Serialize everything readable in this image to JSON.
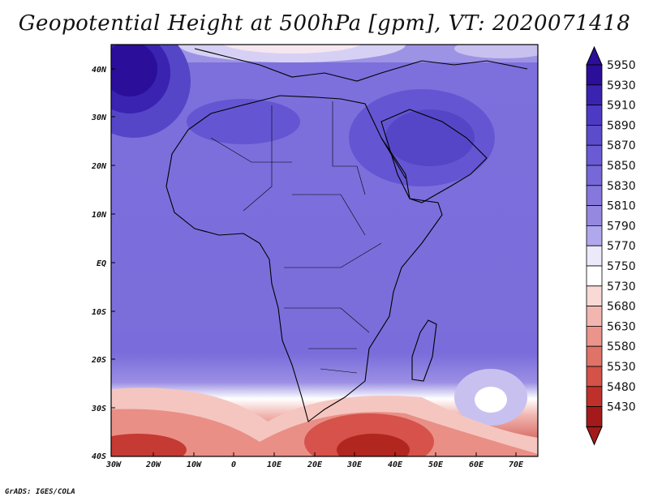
{
  "title": "Geopotential Height at 500hPa [gpm], VT: 2020071418",
  "credit": "GrADS: IGES/COLA",
  "lat_labels": [
    "40N",
    "30N",
    "20N",
    "10N",
    "EQ",
    "10S",
    "20S",
    "30S",
    "40S"
  ],
  "lon_labels": [
    "30W",
    "20W",
    "10W",
    "0",
    "10E",
    "20E",
    "30E",
    "40E",
    "50E",
    "60E",
    "70E"
  ],
  "colorbar": {
    "levels": [
      "5950",
      "5930",
      "5910",
      "5890",
      "5870",
      "5850",
      "5830",
      "5810",
      "5790",
      "5770",
      "5750",
      "5730",
      "5680",
      "5630",
      "5580",
      "5530",
      "5480",
      "5430"
    ],
    "colors": [
      "#2b0e9a",
      "#3a23b0",
      "#4d3ac4",
      "#5b4ccc",
      "#6a5bd4",
      "#7768d8",
      "#8577dc",
      "#9588e0",
      "#b0a8ec",
      "#ece9fb",
      "#ffffff",
      "#f8d9d6",
      "#f2b6b0",
      "#ea948b",
      "#e07368",
      "#d45248",
      "#c0302a",
      "#a41a1a"
    ]
  },
  "map": {
    "lon_range": [
      -30,
      75
    ],
    "lat_range": [
      -40,
      45
    ],
    "features": [
      "Africa",
      "Arabian Peninsula",
      "Madagascar",
      "Mediterranean"
    ]
  }
}
